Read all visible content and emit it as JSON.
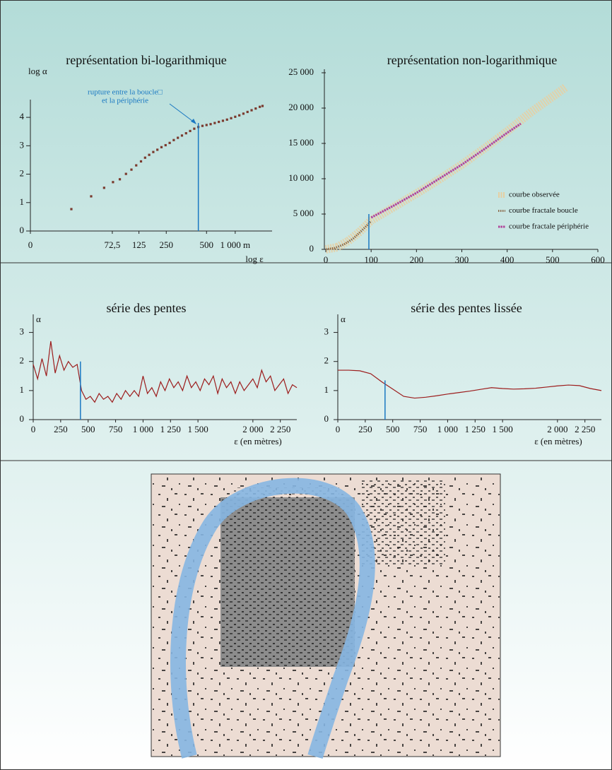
{
  "chart_data": [
    {
      "type": "scatter",
      "title": "représentation bi-logarithmique",
      "y_label": "log α",
      "x_label": "log ε",
      "annotation": [
        "rupture entre la boucle□",
        "et la périphérie"
      ],
      "color": "#7a3a2e",
      "x": [
        0.6,
        0.89,
        1.08,
        1.21,
        1.31,
        1.4,
        1.48,
        1.55,
        1.62,
        1.68,
        1.74,
        1.8,
        1.86,
        1.92,
        1.98,
        2.04,
        2.1,
        2.16,
        2.22,
        2.28,
        2.34,
        2.4,
        2.46,
        2.52,
        2.58,
        2.64,
        2.7,
        2.76,
        2.82,
        2.88,
        2.94,
        3.0,
        3.06,
        3.12,
        3.18,
        3.24,
        3.3,
        3.36,
        3.4
      ],
      "values": [
        0.77,
        1.22,
        1.52,
        1.72,
        1.82,
        2.01,
        2.16,
        2.31,
        2.45,
        2.58,
        2.68,
        2.78,
        2.86,
        2.95,
        3.02,
        3.1,
        3.2,
        3.28,
        3.36,
        3.44,
        3.52,
        3.6,
        3.66,
        3.7,
        3.73,
        3.76,
        3.8,
        3.84,
        3.88,
        3.92,
        3.97,
        4.02,
        4.07,
        4.13,
        4.19,
        4.25,
        4.31,
        4.37,
        4.4
      ],
      "xlim": [
        0,
        3.54
      ],
      "ylim": [
        0,
        4.5
      ],
      "xticks": [
        0,
        {
          "value": 1.2,
          "label": "72,5"
        },
        {
          "value": 1.59,
          "label": "125"
        },
        {
          "value": 1.99,
          "label": "250"
        },
        {
          "value": 2.58,
          "label": "500"
        },
        {
          "value": 3.0,
          "label": "1 000 m"
        }
      ],
      "yticks": [
        0,
        1,
        2,
        3,
        4
      ],
      "rupture": {
        "x": 2.46,
        "y": 3.8,
        "color": "#1a78c2"
      }
    },
    {
      "type": "line",
      "title": "représentation non-logarithmique",
      "xlim": [
        0,
        600
      ],
      "ylim": [
        0,
        25000
      ],
      "xticks": [
        0,
        100,
        200,
        300,
        400,
        500,
        600
      ],
      "yticks": [
        0,
        {
          "value": 5000,
          "label": "5 000"
        },
        {
          "value": 10000,
          "label": "10 000"
        },
        {
          "value": 15000,
          "label": "15 000"
        },
        {
          "value": 20000,
          "label": "20 000"
        },
        {
          "value": 25000,
          "label": "25 000"
        }
      ],
      "legend": "lower right",
      "series": [
        {
          "name": "courbe observée",
          "color": "#e6cfa2",
          "x": [
            0,
            25,
            50,
            75,
            100,
            150,
            200,
            250,
            300,
            350,
            400,
            450,
            500,
            530
          ],
          "values": [
            0,
            300,
            1200,
            2500,
            4100,
            6000,
            7900,
            9900,
            12000,
            14300,
            16700,
            19300,
            21600,
            23000
          ]
        },
        {
          "name": "courbe fractale boucle",
          "color": "#8a6a4a",
          "x": [
            0,
            20,
            40,
            60,
            80,
            100
          ],
          "values": [
            0,
            200,
            700,
            1500,
            2700,
            4000
          ]
        },
        {
          "name": "courbe fractale périphérie",
          "color": "#b0449a",
          "x": [
            100,
            150,
            200,
            250,
            300,
            350,
            400,
            430
          ],
          "values": [
            4500,
            6200,
            8000,
            10000,
            12000,
            14200,
            16500,
            17800
          ]
        }
      ],
      "rupture": {
        "x": 95,
        "y": 5000,
        "color": "#1a78c2"
      }
    },
    {
      "type": "line",
      "title": "série des pentes",
      "y_label": "α",
      "x_label": "ε (en mètres)",
      "color": "#9c1c1c",
      "x": [
        0,
        40,
        80,
        120,
        160,
        200,
        240,
        280,
        320,
        360,
        400,
        440,
        480,
        520,
        560,
        600,
        640,
        680,
        720,
        760,
        800,
        840,
        880,
        920,
        960,
        1000,
        1040,
        1080,
        1120,
        1160,
        1200,
        1240,
        1280,
        1320,
        1360,
        1400,
        1440,
        1480,
        1520,
        1560,
        1600,
        1640,
        1680,
        1720,
        1760,
        1800,
        1840,
        1880,
        1920,
        1960,
        2000,
        2040,
        2080,
        2120,
        2160,
        2200,
        2240,
        2280,
        2320,
        2360,
        2400
      ],
      "values": [
        1.9,
        1.4,
        2.1,
        1.5,
        2.7,
        1.6,
        2.2,
        1.7,
        2.0,
        1.8,
        1.9,
        1.0,
        0.7,
        0.8,
        0.6,
        0.9,
        0.7,
        0.8,
        0.6,
        0.9,
        0.7,
        1.0,
        0.8,
        1.0,
        0.8,
        1.5,
        0.9,
        1.1,
        0.8,
        1.3,
        1.0,
        1.4,
        1.1,
        1.3,
        1.0,
        1.5,
        1.1,
        1.3,
        1.0,
        1.4,
        1.2,
        1.5,
        0.9,
        1.4,
        1.1,
        1.3,
        0.9,
        1.3,
        1.0,
        1.2,
        1.4,
        1.1,
        1.7,
        1.3,
        1.5,
        1.0,
        1.2,
        1.4,
        0.9,
        1.2,
        1.1
      ],
      "xlim": [
        0,
        2400
      ],
      "ylim": [
        0,
        3.5
      ],
      "xticks": [
        0,
        250,
        500,
        750,
        {
          "value": 1000,
          "label": "1 000"
        },
        {
          "value": 1250,
          "label": "1 250"
        },
        {
          "value": 1500,
          "label": "1 500"
        },
        {
          "value": 2000,
          "label": "2 000"
        },
        {
          "value": 2250,
          "label": "2 250"
        }
      ],
      "yticks": [
        0,
        1,
        2,
        3
      ],
      "rupture": {
        "x": 430,
        "y": 2.0,
        "color": "#1a78c2"
      }
    },
    {
      "type": "line",
      "title": "série des pentes lissée",
      "y_label": "α",
      "x_label": "ε (en mètres)",
      "color": "#9c1c1c",
      "x": [
        0,
        100,
        200,
        300,
        400,
        500,
        600,
        700,
        800,
        900,
        1000,
        1100,
        1200,
        1300,
        1400,
        1500,
        1600,
        1700,
        1800,
        1900,
        2000,
        2100,
        2200,
        2300,
        2400
      ],
      "values": [
        1.7,
        1.7,
        1.68,
        1.58,
        1.3,
        1.05,
        0.8,
        0.74,
        0.77,
        0.82,
        0.88,
        0.93,
        0.98,
        1.04,
        1.1,
        1.07,
        1.05,
        1.06,
        1.08,
        1.12,
        1.16,
        1.19,
        1.17,
        1.07,
        1.0
      ],
      "xlim": [
        0,
        2400
      ],
      "ylim": [
        0,
        3.5
      ],
      "xticks": [
        0,
        250,
        500,
        750,
        {
          "value": 1000,
          "label": "1 000"
        },
        {
          "value": 1250,
          "label": "1 250"
        },
        {
          "value": 1500,
          "label": "1 500"
        },
        {
          "value": 2000,
          "label": "2 000"
        },
        {
          "value": 2250,
          "label": "2 250"
        }
      ],
      "yticks": [
        0,
        1,
        2,
        3
      ],
      "rupture": {
        "x": 430,
        "y": 1.35,
        "color": "#1a78c2"
      }
    }
  ]
}
